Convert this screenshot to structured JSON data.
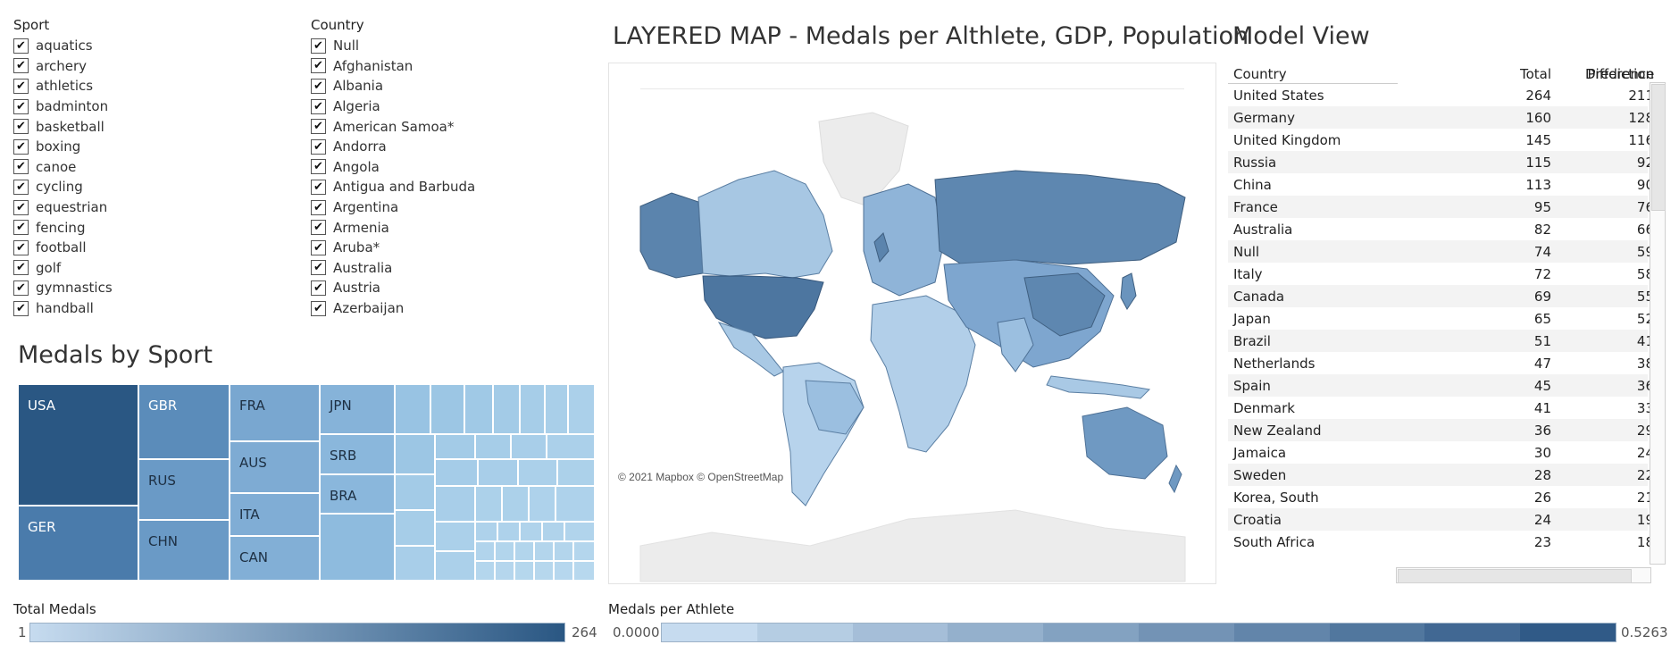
{
  "sport_filter": {
    "title": "Sport",
    "items": [
      "aquatics",
      "archery",
      "athletics",
      "badminton",
      "basketball",
      "boxing",
      "canoe",
      "cycling",
      "equestrian",
      "fencing",
      "football",
      "golf",
      "gymnastics",
      "handball"
    ],
    "check": "✔"
  },
  "country_filter": {
    "title": "Country",
    "items": [
      "Null",
      "Afghanistan",
      "Albania",
      "Algeria",
      "American Samoa*",
      "Andorra",
      "Angola",
      "Antigua and Barbuda",
      "Argentina",
      "Armenia",
      "Aruba*",
      "Australia",
      "Austria",
      "Azerbaijan"
    ],
    "check": "✔"
  },
  "treemap": {
    "title": "Medals by Sport",
    "cells": [
      {
        "label": "USA",
        "color": "#2a5783",
        "text_color": "#ffffff"
      },
      {
        "label": "GER",
        "color": "#4a7bab",
        "text_color": "#ffffff"
      },
      {
        "label": "GBR",
        "color": "#5b8cba",
        "text_color": "#ffffff"
      },
      {
        "label": "RUS",
        "color": "#6a9ac6",
        "text_color": "#1d2f42"
      },
      {
        "label": "CHN",
        "color": "#6a9ac6",
        "text_color": "#1d2f42"
      },
      {
        "label": "FRA",
        "color": "#79a7d0",
        "text_color": "#1d2f42"
      },
      {
        "label": "AUS",
        "color": "#7eabd3",
        "text_color": "#1d2f42"
      },
      {
        "label": "ITA",
        "color": "#80add5",
        "text_color": "#1d2f42"
      },
      {
        "label": "CAN",
        "color": "#82afd6",
        "text_color": "#1d2f42"
      },
      {
        "label": "JPN",
        "color": "#86b3d9",
        "text_color": "#1d2f42"
      },
      {
        "label": "SRB",
        "color": "#8ab7dc",
        "text_color": "#1d2f42"
      },
      {
        "label": "BRA",
        "color": "#8ab7dc",
        "text_color": "#1d2f42"
      }
    ]
  },
  "map": {
    "title": "LAYERED MAP - Medals per Althlete, GDP, Population",
    "attribution": "© 2021 Mapbox © OpenStreetMap"
  },
  "model_view": {
    "title": "Model View",
    "columns": [
      "Country",
      "Total",
      "Prediction",
      "Difference"
    ],
    "rows": [
      [
        "United States",
        "264",
        "211"
      ],
      [
        "Germany",
        "160",
        "128"
      ],
      [
        "United Kingdom",
        "145",
        "116"
      ],
      [
        "Russia",
        "115",
        "92"
      ],
      [
        "China",
        "113",
        "90"
      ],
      [
        "France",
        "95",
        "76"
      ],
      [
        "Australia",
        "82",
        "66"
      ],
      [
        "Null",
        "74",
        "59"
      ],
      [
        "Italy",
        "72",
        "58"
      ],
      [
        "Canada",
        "69",
        "55"
      ],
      [
        "Japan",
        "65",
        "52"
      ],
      [
        "Brazil",
        "51",
        "41"
      ],
      [
        "Netherlands",
        "47",
        "38"
      ],
      [
        "Spain",
        "45",
        "36"
      ],
      [
        "Denmark",
        "41",
        "33"
      ],
      [
        "New Zealand",
        "36",
        "29"
      ],
      [
        "Jamaica",
        "30",
        "24"
      ],
      [
        "Sweden",
        "28",
        "22"
      ],
      [
        "Korea, South",
        "26",
        "21"
      ],
      [
        "Croatia",
        "24",
        "19"
      ],
      [
        "South Africa",
        "23",
        "18"
      ]
    ]
  },
  "legend_total": {
    "title": "Total Medals",
    "min": "1",
    "max": "264",
    "color_low": "#c6dbef",
    "color_high": "#2a5783"
  },
  "legend_athlete": {
    "title": "Medals per Athlete",
    "min": "0.0000",
    "max": "0.5263",
    "steps": 10
  }
}
